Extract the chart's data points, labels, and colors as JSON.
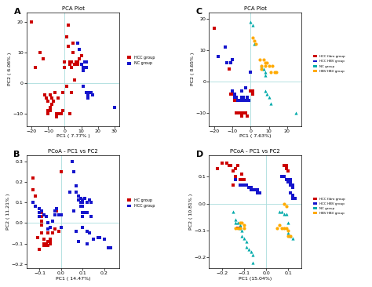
{
  "panel_A": {
    "title": "PCA Plot",
    "xlabel": "PC1 ( 7.77% )",
    "ylabel": "PC2 ( 6.06% )",
    "xlim": [
      -23,
      33
    ],
    "ylim": [
      -14,
      23
    ],
    "xticks": [
      -20,
      -10,
      0,
      10,
      20,
      30
    ],
    "yticks": [
      -10,
      0,
      10,
      20
    ],
    "red_points": [
      [
        -20,
        20
      ],
      [
        -18,
        5
      ],
      [
        -15,
        10
      ],
      [
        -13,
        8
      ],
      [
        -12,
        -4
      ],
      [
        -11,
        -5
      ],
      [
        -10,
        -6
      ],
      [
        -10,
        -9
      ],
      [
        -10,
        -10
      ],
      [
        -9,
        -9
      ],
      [
        -9,
        -8
      ],
      [
        -9,
        -4
      ],
      [
        -8,
        -5
      ],
      [
        -8,
        -7
      ],
      [
        -7,
        -6
      ],
      [
        -6,
        -3
      ],
      [
        -5,
        -10
      ],
      [
        -5,
        -11
      ],
      [
        -4,
        -5
      ],
      [
        -3,
        -10
      ],
      [
        -2,
        -10
      ],
      [
        -1,
        -9
      ],
      [
        -1,
        -3
      ],
      [
        0,
        5
      ],
      [
        0,
        7
      ],
      [
        1,
        15
      ],
      [
        1,
        -1
      ],
      [
        2,
        19
      ],
      [
        2,
        12
      ],
      [
        3,
        7
      ],
      [
        3,
        6
      ],
      [
        3,
        -10
      ],
      [
        4,
        7
      ],
      [
        4,
        5
      ],
      [
        4,
        -3
      ],
      [
        5,
        10
      ],
      [
        5,
        13
      ],
      [
        6,
        6
      ],
      [
        6,
        1
      ],
      [
        7,
        7
      ],
      [
        8,
        6
      ],
      [
        8,
        7
      ],
      [
        9,
        8
      ],
      [
        10,
        9
      ]
    ],
    "blue_points": [
      [
        8,
        13
      ],
      [
        9,
        11
      ],
      [
        10,
        6
      ],
      [
        11,
        5
      ],
      [
        11,
        4
      ],
      [
        11,
        -1
      ],
      [
        12,
        7
      ],
      [
        13,
        7
      ],
      [
        13,
        5
      ],
      [
        13,
        -3
      ],
      [
        14,
        -4
      ],
      [
        14,
        -5
      ],
      [
        15,
        -3
      ],
      [
        16,
        -3
      ],
      [
        17,
        -4
      ],
      [
        30,
        -8
      ]
    ],
    "red_label": "HCC group",
    "blue_label": "NC group"
  },
  "panel_B": {
    "title": "PCoA - PC1 vs PC2",
    "xlabel": "PC1 ( 14.47%)",
    "ylabel": "PC2 ( 11.21% )",
    "xlim": [
      -0.16,
      0.27
    ],
    "ylim": [
      -0.22,
      0.33
    ],
    "xticks": [
      -0.1,
      0,
      0.1,
      0.2
    ],
    "yticks": [
      -0.2,
      -0.1,
      0,
      0.1,
      0.2,
      0.3
    ],
    "red_points": [
      [
        -0.13,
        0.22
      ],
      [
        -0.13,
        0.16
      ],
      [
        -0.12,
        0.13
      ],
      [
        -0.1,
        0.07
      ],
      [
        -0.09,
        0.05
      ],
      [
        -0.09,
        0.03
      ],
      [
        -0.09,
        0.01
      ],
      [
        -0.09,
        -0.01
      ],
      [
        -0.09,
        -0.05
      ],
      [
        -0.08,
        -0.08
      ],
      [
        -0.08,
        -0.1
      ],
      [
        -0.08,
        -0.11
      ],
      [
        -0.07,
        -0.1
      ],
      [
        -0.07,
        -0.11
      ],
      [
        -0.06,
        -0.09
      ],
      [
        -0.06,
        -0.11
      ],
      [
        -0.06,
        -0.05
      ],
      [
        -0.05,
        -0.09
      ],
      [
        -0.05,
        -0.1
      ],
      [
        -0.05,
        -0.08
      ],
      [
        -0.04,
        -0.05
      ],
      [
        -0.03,
        0.04
      ],
      [
        -0.03,
        -0.03
      ],
      [
        -0.02,
        0.06
      ],
      [
        -0.01,
        -0.04
      ],
      [
        -0.11,
        -0.07
      ],
      [
        -0.1,
        -0.13
      ],
      [
        0.0,
        0.25
      ]
    ],
    "blue_points": [
      [
        -0.13,
        0.1
      ],
      [
        -0.12,
        0.08
      ],
      [
        -0.1,
        0.07
      ],
      [
        -0.1,
        0.05
      ],
      [
        -0.1,
        0.03
      ],
      [
        -0.09,
        0.06
      ],
      [
        -0.08,
        0.04
      ],
      [
        -0.07,
        0.03
      ],
      [
        -0.06,
        0.0
      ],
      [
        -0.06,
        -0.03
      ],
      [
        -0.05,
        -0.02
      ],
      [
        -0.04,
        0.01
      ],
      [
        -0.03,
        0.06
      ],
      [
        -0.03,
        0.04
      ],
      [
        -0.02,
        0.07
      ],
      [
        -0.01,
        0.04
      ],
      [
        0.0,
        0.04
      ],
      [
        0.0,
        -0.02
      ],
      [
        0.05,
        0.3
      ],
      [
        0.06,
        0.25
      ],
      [
        0.07,
        0.18
      ],
      [
        0.07,
        0.15
      ],
      [
        0.08,
        0.13
      ],
      [
        0.08,
        0.11
      ],
      [
        0.09,
        0.12
      ],
      [
        0.09,
        0.1
      ],
      [
        0.09,
        0.08
      ],
      [
        0.1,
        0.11
      ],
      [
        0.1,
        0.1
      ],
      [
        0.1,
        0.08
      ],
      [
        0.1,
        0.05
      ],
      [
        0.1,
        0.03
      ],
      [
        0.11,
        0.12
      ],
      [
        0.11,
        0.05
      ],
      [
        0.12,
        0.1
      ],
      [
        0.12,
        0.05
      ],
      [
        0.13,
        0.11
      ],
      [
        0.14,
        0.1
      ],
      [
        0.14,
        0.03
      ],
      [
        0.12,
        -0.04
      ],
      [
        0.13,
        -0.05
      ],
      [
        0.15,
        -0.08
      ],
      [
        0.17,
        -0.07
      ],
      [
        0.18,
        -0.07
      ],
      [
        0.2,
        -0.08
      ],
      [
        0.22,
        -0.12
      ],
      [
        0.23,
        -0.12
      ],
      [
        0.1,
        -0.02
      ],
      [
        0.04,
        0.15
      ],
      [
        0.06,
        0.06
      ],
      [
        0.07,
        -0.04
      ],
      [
        0.08,
        -0.09
      ],
      [
        0.12,
        -0.1
      ]
    ],
    "red_label": "HC group",
    "blue_label": "HCC group"
  },
  "panel_C": {
    "title": "PCA Plot",
    "xlabel": "PC1 ( 7.63%)",
    "ylabel": "PC2 ( 8.65% )",
    "xlim": [
      -23,
      28
    ],
    "ylim": [
      -14,
      22
    ],
    "xticks": [
      -20,
      -10,
      0,
      10,
      20
    ],
    "yticks": [
      -10,
      0,
      10,
      20
    ],
    "red_points": [
      [
        -20,
        17
      ],
      [
        -12,
        4
      ],
      [
        -11,
        -4
      ],
      [
        -10,
        -4
      ],
      [
        -9,
        -4
      ],
      [
        -9,
        -5
      ],
      [
        -9,
        -6
      ],
      [
        -8,
        -5
      ],
      [
        -8,
        -6
      ],
      [
        -8,
        -10
      ],
      [
        -7,
        -10
      ],
      [
        -6,
        -10
      ],
      [
        -5,
        -11
      ],
      [
        -4,
        -10
      ],
      [
        -3,
        -10
      ],
      [
        -2,
        -11
      ],
      [
        0,
        -3
      ],
      [
        1,
        -3
      ],
      [
        1,
        -4
      ]
    ],
    "blue_points": [
      [
        -18,
        8
      ],
      [
        -14,
        11
      ],
      [
        -13,
        6
      ],
      [
        -11,
        6
      ],
      [
        -10,
        7
      ],
      [
        -10,
        -3
      ],
      [
        -9,
        -4
      ],
      [
        -9,
        -5
      ],
      [
        -8,
        -5
      ],
      [
        -7,
        -6
      ],
      [
        -6,
        -6
      ],
      [
        -5,
        -5
      ],
      [
        -4,
        -5
      ],
      [
        -4,
        -6
      ],
      [
        -3,
        -6
      ],
      [
        -2,
        -5
      ],
      [
        -1,
        -6
      ],
      [
        0,
        3
      ],
      [
        -5,
        -3
      ],
      [
        -3,
        -2
      ]
    ],
    "teal_points": [
      [
        0,
        19
      ],
      [
        1,
        18
      ],
      [
        2,
        12
      ],
      [
        6,
        5
      ],
      [
        7,
        4
      ],
      [
        8,
        3
      ],
      [
        8,
        2
      ],
      [
        8,
        -3
      ],
      [
        9,
        -4
      ],
      [
        10,
        -5
      ],
      [
        11,
        -7
      ],
      [
        25,
        -10
      ]
    ],
    "orange_points": [
      [
        1,
        14
      ],
      [
        2,
        13
      ],
      [
        3,
        12
      ],
      [
        5,
        7
      ],
      [
        6,
        5
      ],
      [
        6,
        4
      ],
      [
        7,
        7
      ],
      [
        8,
        6
      ],
      [
        8,
        5
      ],
      [
        9,
        6
      ],
      [
        10,
        5
      ],
      [
        11,
        3
      ],
      [
        12,
        5
      ],
      [
        13,
        3
      ],
      [
        14,
        3
      ]
    ],
    "red_label": "HCC fibro group",
    "blue_label": "HCC HBV group",
    "teal_label": "NC group",
    "orange_label": "HBV HBV group"
  },
  "panel_D": {
    "title": "PCoA - PC1 vs PC2",
    "xlabel": "PC1 (15.04%)",
    "ylabel": "PC2 ( 10.81% )",
    "xlim": [
      -0.26,
      0.16
    ],
    "ylim": [
      -0.24,
      0.18
    ],
    "xticks": [
      -0.2,
      -0.1,
      0,
      0.1
    ],
    "yticks": [
      -0.2,
      -0.1,
      0,
      0.1
    ],
    "red_points": [
      [
        -0.22,
        0.13
      ],
      [
        -0.2,
        0.15
      ],
      [
        -0.18,
        0.15
      ],
      [
        -0.17,
        0.14
      ],
      [
        -0.16,
        0.14
      ],
      [
        -0.15,
        0.12
      ],
      [
        -0.14,
        0.13
      ],
      [
        -0.14,
        0.1
      ],
      [
        -0.13,
        0.14
      ],
      [
        -0.12,
        0.09
      ],
      [
        -0.11,
        0.11
      ],
      [
        -0.11,
        0.09
      ],
      [
        -0.1,
        0.09
      ],
      [
        -0.15,
        0.07
      ],
      [
        -0.13,
        -0.09
      ],
      [
        -0.12,
        -0.09
      ],
      [
        0.08,
        0.14
      ],
      [
        0.09,
        0.14
      ],
      [
        0.09,
        0.13
      ],
      [
        0.1,
        0.12
      ]
    ],
    "blue_points": [
      [
        -0.14,
        0.09
      ],
      [
        -0.12,
        0.07
      ],
      [
        -0.11,
        0.07
      ],
      [
        -0.1,
        0.07
      ],
      [
        -0.09,
        0.07
      ],
      [
        -0.08,
        0.06
      ],
      [
        -0.07,
        0.06
      ],
      [
        -0.07,
        0.05
      ],
      [
        -0.06,
        0.05
      ],
      [
        -0.05,
        0.05
      ],
      [
        -0.04,
        0.05
      ],
      [
        -0.04,
        0.04
      ],
      [
        -0.03,
        0.04
      ],
      [
        0.07,
        0.1
      ],
      [
        0.08,
        0.1
      ],
      [
        0.09,
        0.09
      ],
      [
        0.1,
        0.09
      ],
      [
        0.1,
        0.08
      ],
      [
        0.11,
        0.09
      ],
      [
        0.11,
        0.08
      ],
      [
        0.11,
        0.07
      ],
      [
        0.12,
        0.07
      ],
      [
        0.12,
        0.06
      ],
      [
        0.11,
        0.04
      ],
      [
        0.12,
        0.03
      ],
      [
        0.12,
        0.02
      ],
      [
        0.13,
        0.02
      ]
    ],
    "teal_points": [
      [
        -0.15,
        -0.03
      ],
      [
        -0.14,
        -0.06
      ],
      [
        -0.14,
        -0.07
      ],
      [
        -0.13,
        -0.07
      ],
      [
        -0.12,
        -0.08
      ],
      [
        -0.12,
        -0.09
      ],
      [
        -0.11,
        -0.1
      ],
      [
        -0.11,
        -0.12
      ],
      [
        -0.1,
        -0.13
      ],
      [
        -0.09,
        -0.14
      ],
      [
        -0.09,
        -0.16
      ],
      [
        -0.08,
        -0.17
      ],
      [
        -0.07,
        -0.18
      ],
      [
        -0.06,
        -0.19
      ],
      [
        -0.06,
        -0.22
      ],
      [
        0.06,
        -0.03
      ],
      [
        0.07,
        -0.03
      ],
      [
        0.08,
        -0.04
      ],
      [
        0.09,
        -0.04
      ],
      [
        0.1,
        -0.07
      ],
      [
        0.1,
        -0.11
      ],
      [
        0.11,
        -0.12
      ],
      [
        0.12,
        -0.13
      ]
    ],
    "orange_points": [
      [
        -0.14,
        -0.09
      ],
      [
        -0.13,
        -0.09
      ],
      [
        -0.12,
        -0.09
      ],
      [
        -0.12,
        -0.07
      ],
      [
        -0.11,
        -0.07
      ],
      [
        -0.1,
        -0.08
      ],
      [
        -0.1,
        -0.09
      ],
      [
        0.05,
        -0.09
      ],
      [
        0.06,
        -0.08
      ],
      [
        0.07,
        -0.09
      ],
      [
        0.08,
        -0.09
      ],
      [
        0.09,
        -0.09
      ],
      [
        0.1,
        -0.1
      ],
      [
        0.1,
        -0.12
      ],
      [
        0.11,
        -0.12
      ],
      [
        0.08,
        0.0
      ],
      [
        0.09,
        -0.01
      ]
    ],
    "red_label": "HCC fibro group",
    "blue_label": "HCC HBV group",
    "teal_label": "NC group",
    "orange_label": "HBV HBV group"
  }
}
